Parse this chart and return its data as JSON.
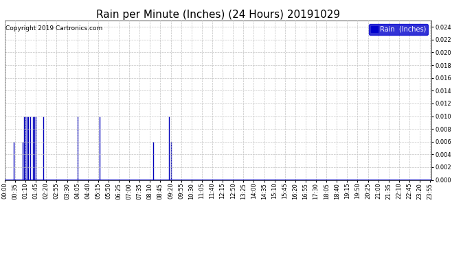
{
  "title": "Rain per Minute (Inches) (24 Hours) 20191029",
  "copyright_text": "Copyright 2019 Cartronics.com",
  "legend_label": "Rain  (Inches)",
  "legend_bg": "#0000cc",
  "legend_fg": "#ffffff",
  "bar_color": "#0000bb",
  "background_color": "#ffffff",
  "grid_color": "#bbbbbb",
  "ylim": [
    0.0,
    0.025
  ],
  "yticks": [
    0.0,
    0.002,
    0.004,
    0.006,
    0.008,
    0.01,
    0.012,
    0.014,
    0.016,
    0.018,
    0.02,
    0.022,
    0.024
  ],
  "total_minutes": 1440,
  "rain_spikes": [
    {
      "minute": 30,
      "value": 0.006
    },
    {
      "minute": 60,
      "value": 0.006
    },
    {
      "minute": 65,
      "value": 0.01
    },
    {
      "minute": 70,
      "value": 0.01
    },
    {
      "minute": 75,
      "value": 0.01
    },
    {
      "minute": 80,
      "value": 0.01
    },
    {
      "minute": 85,
      "value": 0.01
    },
    {
      "minute": 95,
      "value": 0.01
    },
    {
      "minute": 100,
      "value": 0.01
    },
    {
      "minute": 105,
      "value": 0.01
    },
    {
      "minute": 130,
      "value": 0.01
    },
    {
      "minute": 245,
      "value": 0.01
    },
    {
      "minute": 320,
      "value": 0.01
    },
    {
      "minute": 500,
      "value": 0.006
    },
    {
      "minute": 555,
      "value": 0.01
    },
    {
      "minute": 560,
      "value": 0.006
    }
  ],
  "xtick_interval_minutes": 35,
  "title_fontsize": 11,
  "tick_fontsize": 6,
  "copyright_fontsize": 6.5
}
